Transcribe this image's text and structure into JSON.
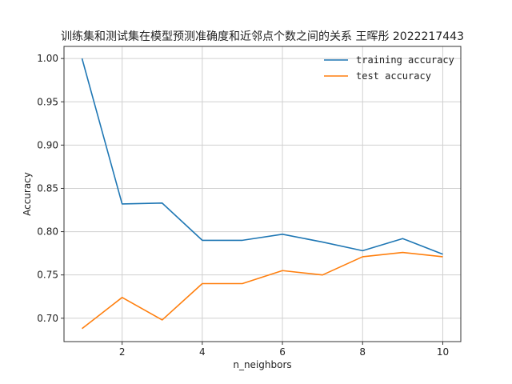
{
  "chart_data": {
    "type": "line",
    "title": "训练集和测试集在模型预测准确度和近邻点个数之间的关系 王晖彤 2022217443",
    "xlabel": "n_neighbors",
    "ylabel": "Accuracy",
    "x": [
      1,
      2,
      3,
      4,
      5,
      6,
      7,
      8,
      9,
      10
    ],
    "xticks": [
      "2",
      "4",
      "6",
      "8",
      "10"
    ],
    "yticks": [
      "0.70",
      "0.75",
      "0.80",
      "0.85",
      "0.90",
      "0.95",
      "1.00"
    ],
    "xlim": [
      0.55,
      10.45
    ],
    "ylim": [
      0.673,
      1.014
    ],
    "grid": true,
    "legend_position": "top-right",
    "series": [
      {
        "name": "training accuracy",
        "color": "#1f77b4",
        "values": [
          1.0,
          0.832,
          0.833,
          0.79,
          0.79,
          0.797,
          0.788,
          0.778,
          0.792,
          0.774
        ]
      },
      {
        "name": "test accuracy",
        "color": "#ff7f0e",
        "values": [
          0.688,
          0.724,
          0.698,
          0.74,
          0.74,
          0.755,
          0.75,
          0.771,
          0.776,
          0.771
        ]
      }
    ]
  }
}
